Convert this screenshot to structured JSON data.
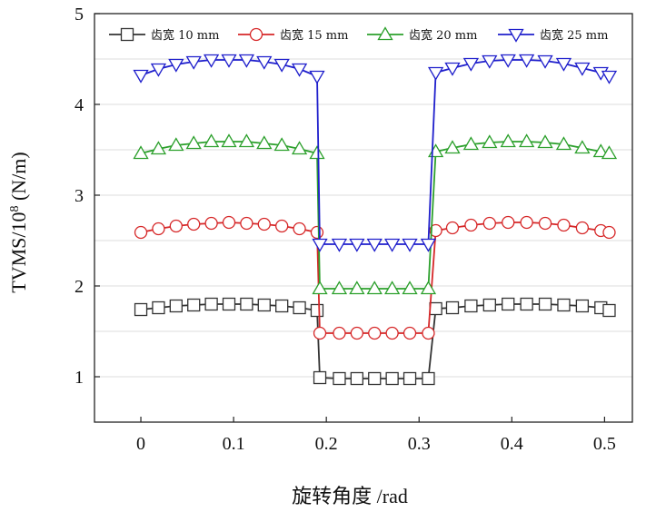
{
  "chart_data": {
    "type": "line",
    "xlabel": "旋转角度 /rad",
    "ylabel_main": "TVMS/10",
    "ylabel_exp": "8",
    "ylabel_unit": " (N/m)",
    "xlim": [
      -0.05,
      0.53
    ],
    "ylim": [
      0.5,
      5.0
    ],
    "xticks": [
      0,
      0.1,
      0.2,
      0.3,
      0.4,
      0.5
    ],
    "xtick_labels": [
      "0",
      "0.1",
      "0.2",
      "0.3",
      "0.4",
      "0.5"
    ],
    "yticks": [
      1,
      2,
      3,
      4,
      5
    ],
    "ytick_labels": [
      "1",
      "2",
      "3",
      "4",
      "5"
    ],
    "grid": true,
    "legend_position": "top",
    "series": [
      {
        "name": "齿宽 10 mm",
        "color": "#333333",
        "marker": "square",
        "points": [
          [
            0,
            1.74
          ],
          [
            0.019,
            1.76
          ],
          [
            0.038,
            1.78
          ],
          [
            0.057,
            1.79
          ],
          [
            0.076,
            1.8
          ],
          [
            0.095,
            1.8
          ],
          [
            0.114,
            1.8
          ],
          [
            0.133,
            1.79
          ],
          [
            0.152,
            1.78
          ],
          [
            0.171,
            1.76
          ],
          [
            0.19,
            1.73
          ],
          [
            0.193,
            0.99
          ],
          [
            0.214,
            0.98
          ],
          [
            0.233,
            0.98
          ],
          [
            0.252,
            0.98
          ],
          [
            0.271,
            0.98
          ],
          [
            0.29,
            0.98
          ],
          [
            0.31,
            0.98
          ],
          [
            0.318,
            1.75
          ],
          [
            0.336,
            1.76
          ],
          [
            0.356,
            1.78
          ],
          [
            0.376,
            1.79
          ],
          [
            0.396,
            1.8
          ],
          [
            0.416,
            1.8
          ],
          [
            0.436,
            1.8
          ],
          [
            0.456,
            1.79
          ],
          [
            0.476,
            1.78
          ],
          [
            0.496,
            1.76
          ],
          [
            0.505,
            1.73
          ]
        ]
      },
      {
        "name": "齿宽 15 mm",
        "color": "#d62728",
        "marker": "circle",
        "points": [
          [
            0,
            2.59
          ],
          [
            0.019,
            2.63
          ],
          [
            0.038,
            2.66
          ],
          [
            0.057,
            2.68
          ],
          [
            0.076,
            2.69
          ],
          [
            0.095,
            2.7
          ],
          [
            0.114,
            2.69
          ],
          [
            0.133,
            2.68
          ],
          [
            0.152,
            2.66
          ],
          [
            0.171,
            2.63
          ],
          [
            0.19,
            2.59
          ],
          [
            0.193,
            1.48
          ],
          [
            0.214,
            1.48
          ],
          [
            0.233,
            1.48
          ],
          [
            0.252,
            1.48
          ],
          [
            0.271,
            1.48
          ],
          [
            0.29,
            1.48
          ],
          [
            0.31,
            1.48
          ],
          [
            0.318,
            2.61
          ],
          [
            0.336,
            2.64
          ],
          [
            0.356,
            2.67
          ],
          [
            0.376,
            2.69
          ],
          [
            0.396,
            2.7
          ],
          [
            0.416,
            2.7
          ],
          [
            0.436,
            2.69
          ],
          [
            0.456,
            2.67
          ],
          [
            0.476,
            2.64
          ],
          [
            0.496,
            2.61
          ],
          [
            0.505,
            2.59
          ]
        ]
      },
      {
        "name": "齿宽 20 mm",
        "color": "#2ca02c",
        "marker": "triangle-up",
        "points": [
          [
            0,
            3.46
          ],
          [
            0.019,
            3.51
          ],
          [
            0.038,
            3.55
          ],
          [
            0.057,
            3.57
          ],
          [
            0.076,
            3.59
          ],
          [
            0.095,
            3.59
          ],
          [
            0.114,
            3.59
          ],
          [
            0.133,
            3.57
          ],
          [
            0.152,
            3.55
          ],
          [
            0.171,
            3.51
          ],
          [
            0.19,
            3.46
          ],
          [
            0.193,
            1.97
          ],
          [
            0.214,
            1.97
          ],
          [
            0.233,
            1.97
          ],
          [
            0.252,
            1.97
          ],
          [
            0.271,
            1.97
          ],
          [
            0.29,
            1.97
          ],
          [
            0.31,
            1.97
          ],
          [
            0.318,
            3.48
          ],
          [
            0.336,
            3.52
          ],
          [
            0.356,
            3.56
          ],
          [
            0.376,
            3.58
          ],
          [
            0.396,
            3.59
          ],
          [
            0.416,
            3.59
          ],
          [
            0.436,
            3.58
          ],
          [
            0.456,
            3.56
          ],
          [
            0.476,
            3.52
          ],
          [
            0.496,
            3.48
          ],
          [
            0.505,
            3.46
          ]
        ]
      },
      {
        "name": "齿宽 25 mm",
        "color": "#1f1fcc",
        "marker": "triangle-down",
        "points": [
          [
            0,
            4.32
          ],
          [
            0.019,
            4.39
          ],
          [
            0.038,
            4.44
          ],
          [
            0.057,
            4.47
          ],
          [
            0.076,
            4.49
          ],
          [
            0.095,
            4.49
          ],
          [
            0.114,
            4.49
          ],
          [
            0.133,
            4.47
          ],
          [
            0.152,
            4.44
          ],
          [
            0.171,
            4.39
          ],
          [
            0.19,
            4.31
          ],
          [
            0.193,
            2.46
          ],
          [
            0.214,
            2.46
          ],
          [
            0.233,
            2.46
          ],
          [
            0.252,
            2.46
          ],
          [
            0.271,
            2.46
          ],
          [
            0.29,
            2.46
          ],
          [
            0.31,
            2.46
          ],
          [
            0.318,
            4.35
          ],
          [
            0.336,
            4.4
          ],
          [
            0.356,
            4.45
          ],
          [
            0.376,
            4.48
          ],
          [
            0.396,
            4.49
          ],
          [
            0.416,
            4.49
          ],
          [
            0.436,
            4.48
          ],
          [
            0.456,
            4.45
          ],
          [
            0.476,
            4.4
          ],
          [
            0.496,
            4.35
          ],
          [
            0.505,
            4.31
          ]
        ]
      }
    ]
  }
}
